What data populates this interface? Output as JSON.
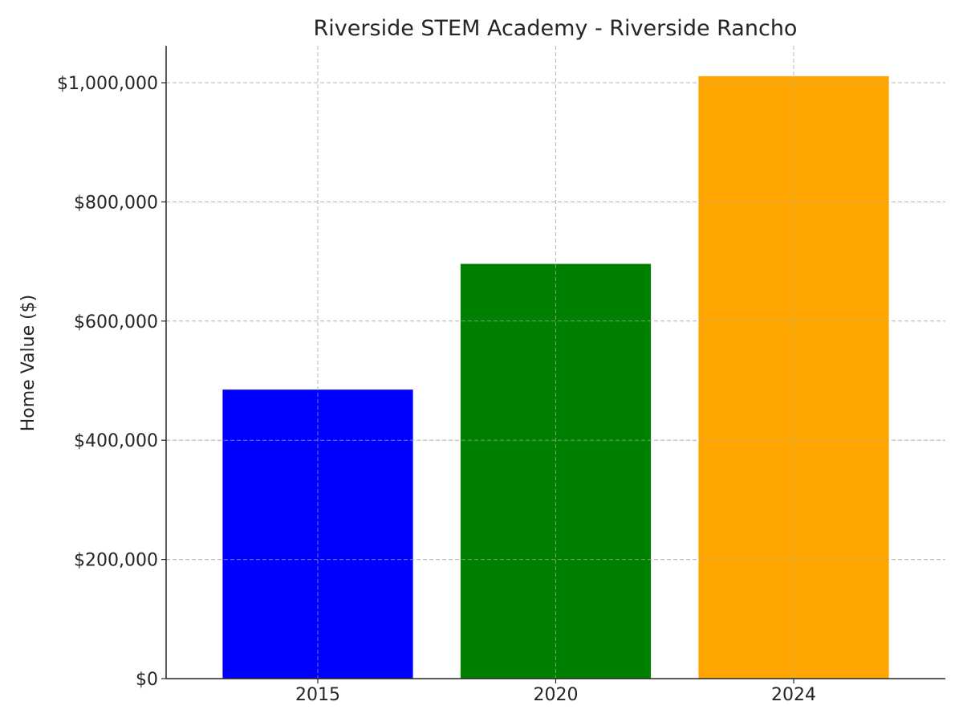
{
  "chart_data": {
    "type": "bar",
    "title": "Riverside STEM Academy - Riverside Rancho",
    "xlabel": "",
    "ylabel": "Home Value ($)",
    "categories": [
      "2015",
      "2020",
      "2024"
    ],
    "values": [
      485000,
      696000,
      1011000
    ],
    "bar_colors": [
      "#0000ff",
      "#008000",
      "#ffa500"
    ],
    "ylim": [
      0,
      1062000
    ],
    "y_ticks": [
      0,
      200000,
      400000,
      600000,
      800000,
      1000000
    ],
    "y_tick_labels": [
      "$0",
      "$200,000",
      "$400,000",
      "$600,000",
      "$800,000",
      "$1,000,000"
    ],
    "grid": true,
    "legend": "none"
  }
}
